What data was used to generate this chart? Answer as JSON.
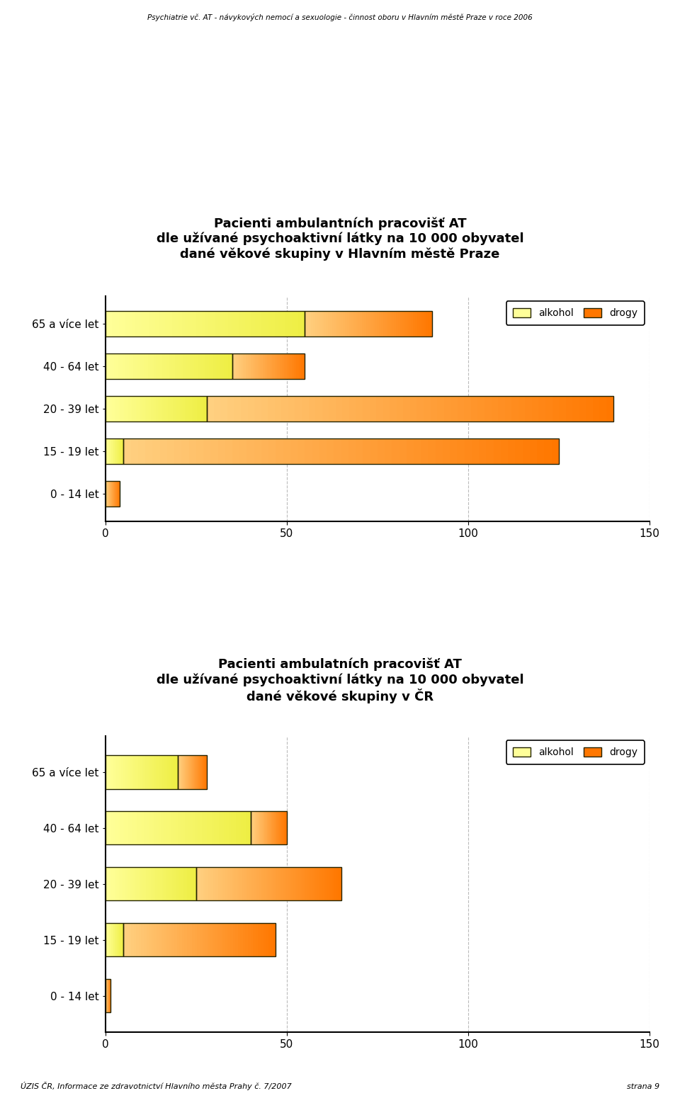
{
  "header": "Psychiatrie vč. AT - návykových nemocí a sexuologie - činnost oboru v Hlavním městě Praze v roce 2006",
  "footer": "ÚZIS ČR, Informace ze zdravotnictví Hlavního města Prahy č. 7/2007",
  "footer_right": "strana 9",
  "chart1": {
    "title": "Pacienti ambulantních pracovišť AT\ndle užívané psychoaktivní látky na 10 000 obyvatel\ndané věkové skupiny v Hlavním městě Praze",
    "categories": [
      "65 a více let",
      "40 - 64 let",
      "20 - 39 let",
      "15 - 19 let",
      "0 - 14 let"
    ],
    "alkohol": [
      55,
      35,
      28,
      5,
      0
    ],
    "drogy": [
      35,
      20,
      112,
      120,
      4
    ],
    "xlim": [
      0,
      150
    ],
    "xticks": [
      0,
      50,
      100,
      150
    ]
  },
  "chart2": {
    "title": "Pacienti ambulatních pracovišť AT\ndle užívané psychoaktivní látky na 10 000 obyvatel\ndané věkové skupiny v ČR",
    "categories": [
      "65 a více let",
      "40 - 64 let",
      "20 - 39 let",
      "15 - 19 let",
      "0 - 14 let"
    ],
    "alkohol": [
      20,
      40,
      25,
      5,
      0
    ],
    "drogy": [
      8,
      10,
      40,
      42,
      1.5
    ],
    "xlim": [
      0,
      150
    ],
    "xticks": [
      0,
      50,
      100,
      150
    ]
  },
  "color_alkohol_light": "#FFFF99",
  "color_alkohol_dark": "#EEEE44",
  "color_alkohol_edge": "#222200",
  "color_drogy_light": "#FFD080",
  "color_drogy_dark": "#FF7700",
  "color_drogy_edge": "#222200",
  "bar_height": 0.6,
  "background_color": "#FFFFFF",
  "grid_color": "#BBBBBB",
  "axis_line_color": "#000000"
}
